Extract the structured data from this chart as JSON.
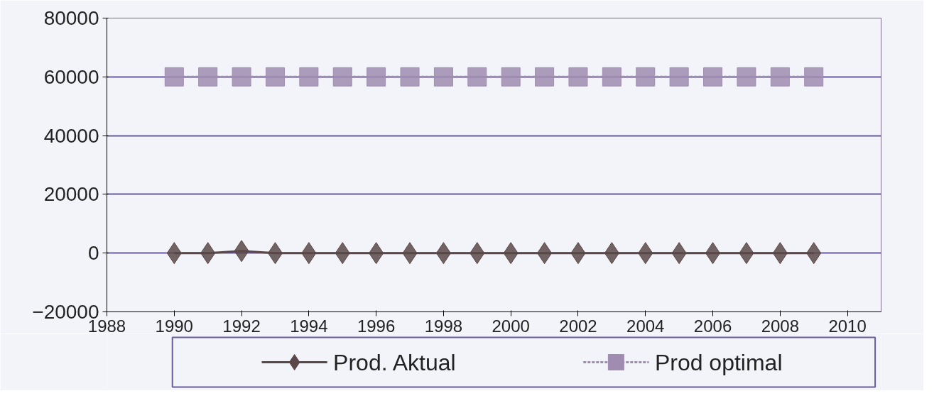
{
  "chart_data": {
    "type": "line",
    "x": [
      1990,
      1991,
      1992,
      1993,
      1994,
      1995,
      1996,
      1997,
      1998,
      1999,
      2000,
      2001,
      2002,
      2003,
      2004,
      2005,
      2006,
      2007,
      2008,
      2009
    ],
    "series": [
      {
        "name": "Prod. Aktual",
        "color": "#5a4848",
        "marker": "diamond",
        "line_style": "solid",
        "values": [
          0,
          0,
          700,
          0,
          0,
          0,
          0,
          0,
          0,
          0,
          0,
          0,
          0,
          0,
          0,
          0,
          0,
          0,
          0,
          0
        ]
      },
      {
        "name": "Prod  optimal",
        "color": "#a08cb0",
        "marker": "square",
        "line_style": "dashed",
        "values": [
          60000,
          60000,
          60000,
          60000,
          60000,
          60000,
          60000,
          60000,
          60000,
          60000,
          60000,
          60000,
          60000,
          60000,
          60000,
          60000,
          60000,
          60000,
          60000,
          60000
        ]
      }
    ],
    "xlim": [
      1988,
      2011
    ],
    "xticks": [
      1988,
      1990,
      1992,
      1994,
      1996,
      1998,
      2000,
      2002,
      2004,
      2006,
      2008,
      2010
    ],
    "ylim": [
      -20000,
      80000
    ],
    "yticks": [
      -20000,
      0,
      20000,
      40000,
      60000,
      80000
    ],
    "grid": "y",
    "legend": "bottom"
  }
}
